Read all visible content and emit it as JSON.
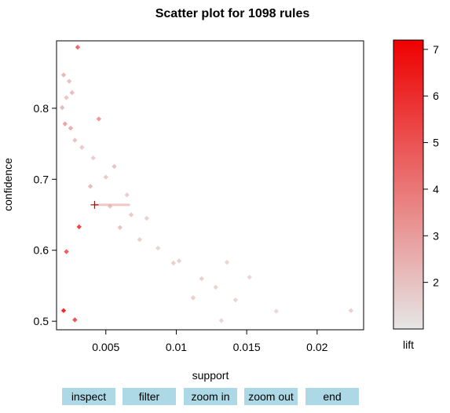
{
  "chart_data": {
    "type": "scatter",
    "title": "Scatter plot for 1098 rules",
    "xlabel": "support",
    "ylabel": "confidence",
    "colorbar_label": "lift",
    "xlim": [
      0.0015,
      0.0233
    ],
    "ylim": [
      0.488,
      0.895
    ],
    "x_ticks": [
      0.005,
      0.01,
      0.015,
      0.02
    ],
    "x_tick_labels": [
      "0.005",
      "0.01",
      "0.015",
      "0.02"
    ],
    "y_ticks": [
      0.5,
      0.6,
      0.7,
      0.8
    ],
    "y_tick_labels": [
      "0.5",
      "0.6",
      "0.7",
      "0.8"
    ],
    "color_range": [
      1,
      7.2
    ],
    "color_ticks": [
      2,
      3,
      4,
      5,
      6,
      7
    ],
    "color_tick_labels": [
      "2",
      "3",
      "4",
      "5",
      "6",
      "7"
    ],
    "color_low": "#e6e6e6",
    "color_high": "#ee0000",
    "grid": false,
    "cursor_marker": {
      "x": 0.0042,
      "y": 0.664
    },
    "points_sample": [
      {
        "x": 0.003,
        "y": 0.886,
        "lift": 5.0
      },
      {
        "x": 0.002,
        "y": 0.847,
        "lift": 2.6
      },
      {
        "x": 0.0024,
        "y": 0.838,
        "lift": 2.3
      },
      {
        "x": 0.0026,
        "y": 0.822,
        "lift": 2.4
      },
      {
        "x": 0.0019,
        "y": 0.801,
        "lift": 2.5
      },
      {
        "x": 0.0022,
        "y": 0.815,
        "lift": 2.1
      },
      {
        "x": 0.0045,
        "y": 0.785,
        "lift": 3.5
      },
      {
        "x": 0.0021,
        "y": 0.778,
        "lift": 3.2
      },
      {
        "x": 0.0025,
        "y": 0.772,
        "lift": 2.9
      },
      {
        "x": 0.0028,
        "y": 0.755,
        "lift": 2.2
      },
      {
        "x": 0.0033,
        "y": 0.745,
        "lift": 2.0
      },
      {
        "x": 0.0041,
        "y": 0.73,
        "lift": 1.9
      },
      {
        "x": 0.0056,
        "y": 0.718,
        "lift": 2.3
      },
      {
        "x": 0.005,
        "y": 0.703,
        "lift": 2.0
      },
      {
        "x": 0.0039,
        "y": 0.69,
        "lift": 2.5
      },
      {
        "x": 0.0065,
        "y": 0.678,
        "lift": 1.9
      },
      {
        "x": 0.0053,
        "y": 0.662,
        "lift": 2.1
      },
      {
        "x": 0.0068,
        "y": 0.65,
        "lift": 2.0
      },
      {
        "x": 0.0079,
        "y": 0.645,
        "lift": 1.8
      },
      {
        "x": 0.006,
        "y": 0.632,
        "lift": 2.2
      },
      {
        "x": 0.0074,
        "y": 0.615,
        "lift": 1.9
      },
      {
        "x": 0.0087,
        "y": 0.603,
        "lift": 1.7
      },
      {
        "x": 0.0102,
        "y": 0.585,
        "lift": 1.8
      },
      {
        "x": 0.0098,
        "y": 0.582,
        "lift": 1.9
      },
      {
        "x": 0.0136,
        "y": 0.583,
        "lift": 1.7
      },
      {
        "x": 0.0152,
        "y": 0.562,
        "lift": 1.6
      },
      {
        "x": 0.0118,
        "y": 0.56,
        "lift": 1.8
      },
      {
        "x": 0.0128,
        "y": 0.548,
        "lift": 1.7
      },
      {
        "x": 0.0112,
        "y": 0.533,
        "lift": 1.9
      },
      {
        "x": 0.0142,
        "y": 0.53,
        "lift": 1.7
      },
      {
        "x": 0.0171,
        "y": 0.514,
        "lift": 1.6
      },
      {
        "x": 0.0224,
        "y": 0.515,
        "lift": 1.9
      },
      {
        "x": 0.0132,
        "y": 0.501,
        "lift": 1.6
      },
      {
        "x": 0.002,
        "y": 0.515,
        "lift": 7.0
      },
      {
        "x": 0.0031,
        "y": 0.633,
        "lift": 6.2
      },
      {
        "x": 0.0022,
        "y": 0.598,
        "lift": 5.4
      },
      {
        "x": 0.0028,
        "y": 0.502,
        "lift": 5.8
      }
    ]
  },
  "buttons": {
    "inspect": "inspect",
    "filter": "filter",
    "zoom_in": "zoom in",
    "zoom_out": "zoom out",
    "end": "end"
  }
}
